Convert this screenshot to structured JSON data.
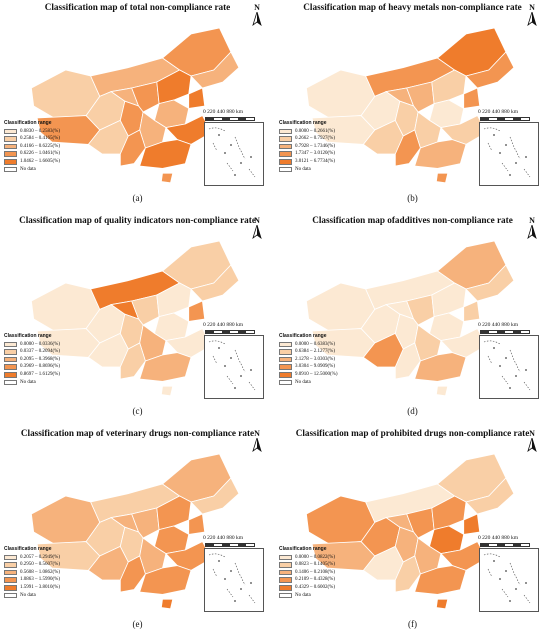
{
  "panels": [
    {
      "title": "Classification map of total non-compliance rate",
      "caption": "(a)",
      "legend_title": "Classification range",
      "classes": [
        "0.0830 – 0.2583(%)",
        "0.2584 – 0.4165(%)",
        "0.4166 – 0.6225(%)",
        "0.6226 – 1.0461(%)",
        "1.0462 – 1.6605(%)"
      ],
      "no_data": "No data",
      "scale_text": "0 220 440     880 km",
      "colors": [
        "#fce9d3",
        "#f9cfa6",
        "#f6b27c",
        "#f39551",
        "#ef7c2c"
      ],
      "region_classes": [
        1,
        3,
        2,
        3,
        2,
        1,
        1,
        2,
        3,
        4,
        4,
        3,
        2,
        2,
        3,
        4,
        4,
        3
      ]
    },
    {
      "title": "Classification map of heavy metals non-compliance rate",
      "caption": "(b)",
      "legend_title": "Classification range",
      "classes": [
        "0.0000 – 0.2661(%)",
        "0.2662 – 0.7927(%)",
        "0.7928 – 1.7346(%)",
        "1.7347 – 3.0120(%)",
        "3.0121 – 6.7734(%)"
      ],
      "no_data": "No data",
      "scale_text": "0 220 440     880 km",
      "colors": [
        "#fce9d3",
        "#f9cfa6",
        "#f6b27c",
        "#f39551",
        "#ef7c2c"
      ],
      "region_classes": [
        0,
        0,
        3,
        4,
        3,
        0,
        1,
        2,
        2,
        1,
        3,
        1,
        0,
        1,
        3,
        1,
        2,
        3
      ]
    },
    {
      "title": "Classification map of quality indicators non-compliance rate",
      "caption": "(c)",
      "legend_title": "Classification range",
      "classes": [
        "0.0000 – 0.0336(%)",
        "0.0337 – 0.2094(%)",
        "0.2095 – 0.3968(%)",
        "0.3969 – 0.8696(%)",
        "0.8697 – 1.6129(%)"
      ],
      "no_data": "No data",
      "scale_text": "0 220 440     880 km",
      "colors": [
        "#fce9d3",
        "#f9cfa6",
        "#f6b27c",
        "#f39551",
        "#ef7c2c"
      ],
      "region_classes": [
        0,
        0,
        4,
        1,
        1,
        0,
        0,
        4,
        1,
        0,
        3,
        1,
        0,
        2,
        1,
        0,
        2,
        0
      ]
    },
    {
      "title": "Classification map ofadditives non-compliance rate",
      "caption": "(d)",
      "legend_title": "Classification range",
      "classes": [
        "0.0000 – 0.6383(%)",
        "0.6384 – 2.1277(%)",
        "2.1278 – 3.0303(%)",
        "3.0304 – 9.0909(%)",
        "9.0910 – 12.5000(%)"
      ],
      "no_data": "No data",
      "scale_text": "0 220 440     880 km",
      "colors": [
        "#fce9d3",
        "#f9cfa6",
        "#f6b27c",
        "#f39551",
        "#ef7c2c"
      ],
      "region_classes": [
        0,
        0,
        0,
        2,
        1,
        0,
        3,
        0,
        1,
        0,
        1,
        0,
        0,
        1,
        0,
        0,
        2,
        0
      ]
    },
    {
      "title": "Classification map of veterinary drugs non-compliance rate",
      "caption": "(e)",
      "legend_title": "Classification range",
      "classes": [
        "0.2057 – 0.2949(%)",
        "0.2950 – 0.5607(%)",
        "0.5608 – 1.0862(%)",
        "1.0863 – 1.5990(%)",
        "1.5991 – 3.8010(%)"
      ],
      "no_data": "No data",
      "scale_text": "0 220 440     880 km",
      "colors": [
        "#fce9d3",
        "#f9cfa6",
        "#f6b27c",
        "#f39551",
        "#ef7c2c"
      ],
      "region_classes": [
        2,
        1,
        1,
        2,
        1,
        1,
        2,
        2,
        2,
        3,
        3,
        1,
        3,
        2,
        3,
        3,
        3,
        4
      ]
    },
    {
      "title": "Classification map of prohibited drugs non-compliance rate",
      "caption": "(f)",
      "legend_title": "Classification range",
      "classes": [
        "0.0000 – 0.0822(%)",
        "0.0823 – 0.1405(%)",
        "0.1406 – 0.2108(%)",
        "0.2109 – 0.4328(%)",
        "0.4329 – 0.6002(%)"
      ],
      "no_data": "No data",
      "scale_text": "0 220 440     880 km",
      "colors": [
        "#fce9d3",
        "#f9cfa6",
        "#f6b27c",
        "#f39551",
        "#ef7c2c"
      ],
      "region_classes": [
        3,
        2,
        0,
        1,
        1,
        3,
        0,
        2,
        3,
        3,
        4,
        2,
        4,
        2,
        1,
        3,
        3,
        4
      ]
    }
  ],
  "north_label": "N"
}
